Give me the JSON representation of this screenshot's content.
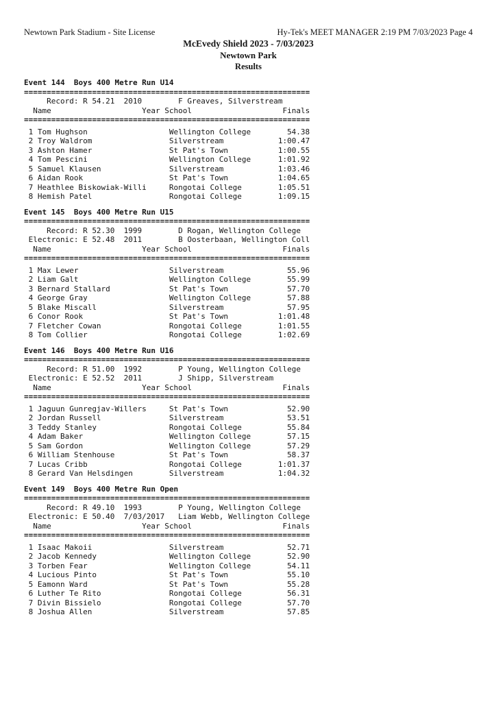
{
  "page_header": {
    "left": "Newtown Park Stadium - Site License",
    "right": "Hy-Tek's MEET MANAGER  2:19 PM  7/03/2023  Page 4",
    "title": "McEvedy Shield 2023 - 7/03/2023",
    "venue": "Newtown Park",
    "results_label": "Results"
  },
  "separator": "===============================================================",
  "column_headers": {
    "name": "Name",
    "year": "Year",
    "school": "School",
    "finals": "Finals"
  },
  "events": [
    {
      "title": "Event 144  Boys 400 Metre Run U14",
      "records": [
        {
          "label": "Record:",
          "flag": "R",
          "mark": "54.21",
          "date": "2010",
          "holder": "F Greaves, Silverstream"
        }
      ],
      "results": [
        {
          "place": "1",
          "name": "Tom Hughson",
          "school": "Wellington College",
          "finals": "54.38"
        },
        {
          "place": "2",
          "name": "Troy Waldrom",
          "school": "Silverstream",
          "finals": "1:00.47"
        },
        {
          "place": "3",
          "name": "Ashton Hamer",
          "school": "St Pat's Town",
          "finals": "1:00.55"
        },
        {
          "place": "4",
          "name": "Tom Pescini",
          "school": "Wellington College",
          "finals": "1:01.92"
        },
        {
          "place": "5",
          "name": "Samuel Klausen",
          "school": "Silverstream",
          "finals": "1:03.46"
        },
        {
          "place": "6",
          "name": "Aidan Rook",
          "school": "St Pat's Town",
          "finals": "1:04.65"
        },
        {
          "place": "7",
          "name": "Heathlee Biskowiak-Willi",
          "school": "Rongotai College",
          "finals": "1:05.51"
        },
        {
          "place": "8",
          "name": "Hemish Patel",
          "school": "Rongotai College",
          "finals": "1:09.15"
        }
      ]
    },
    {
      "title": "Event 145  Boys 400 Metre Run U15",
      "records": [
        {
          "label": "Record:",
          "flag": "R",
          "mark": "52.30",
          "date": "1999",
          "holder": "D Rogan, Wellington College"
        },
        {
          "label": "Electronic:",
          "flag": "E",
          "mark": "52.48",
          "date": "2011",
          "holder": "B Oosterbaan, Wellington Coll"
        }
      ],
      "results": [
        {
          "place": "1",
          "name": "Max Lewer",
          "school": "Silverstream",
          "finals": "55.96"
        },
        {
          "place": "2",
          "name": "Liam Galt",
          "school": "Wellington College",
          "finals": "55.99"
        },
        {
          "place": "3",
          "name": "Bernard Stallard",
          "school": "St Pat's Town",
          "finals": "57.70"
        },
        {
          "place": "4",
          "name": "George Gray",
          "school": "Wellington College",
          "finals": "57.88"
        },
        {
          "place": "5",
          "name": "Blake Miscall",
          "school": "Silverstream",
          "finals": "57.95"
        },
        {
          "place": "6",
          "name": "Conor Rook",
          "school": "St Pat's Town",
          "finals": "1:01.48"
        },
        {
          "place": "7",
          "name": "Fletcher Cowan",
          "school": "Rongotai College",
          "finals": "1:01.55"
        },
        {
          "place": "8",
          "name": "Tom Collier",
          "school": "Rongotai College",
          "finals": "1:02.69"
        }
      ]
    },
    {
      "title": "Event 146  Boys 400 Metre Run U16",
      "records": [
        {
          "label": "Record:",
          "flag": "R",
          "mark": "51.00",
          "date": "1992",
          "holder": "P Young, Wellington College"
        },
        {
          "label": "Electronic:",
          "flag": "E",
          "mark": "52.52",
          "date": "2011",
          "holder": "J Shipp, Silverstream"
        }
      ],
      "results": [
        {
          "place": "1",
          "name": "Jaguun Gunregjav-Willers",
          "school": "St Pat's Town",
          "finals": "52.90"
        },
        {
          "place": "2",
          "name": "Jordan Russell",
          "school": "Silverstream",
          "finals": "53.51"
        },
        {
          "place": "3",
          "name": "Teddy Stanley",
          "school": "Rongotai College",
          "finals": "55.84"
        },
        {
          "place": "4",
          "name": "Adam Baker",
          "school": "Wellington College",
          "finals": "57.15"
        },
        {
          "place": "5",
          "name": "Sam Gordon",
          "school": "Wellington College",
          "finals": "57.29"
        },
        {
          "place": "6",
          "name": "William Stenhouse",
          "school": "St Pat's Town",
          "finals": "58.37"
        },
        {
          "place": "7",
          "name": "Lucas Cribb",
          "school": "Rongotai College",
          "finals": "1:01.37"
        },
        {
          "place": "8",
          "name": "Gerard Van Helsdingen",
          "school": "Silverstream",
          "finals": "1:04.32"
        }
      ]
    },
    {
      "title": "Event 149  Boys 400 Metre Run Open",
      "records": [
        {
          "label": "Record:",
          "flag": "R",
          "mark": "49.10",
          "date": "1993",
          "holder": "P Young, Wellington College"
        },
        {
          "label": "Electronic:",
          "flag": "E",
          "mark": "50.40",
          "date": "7/03/2017",
          "holder": "Liam Webb, Wellington College"
        }
      ],
      "results": [
        {
          "place": "1",
          "name": "Isaac Makoii",
          "school": "Silverstream",
          "finals": "52.71"
        },
        {
          "place": "2",
          "name": "Jacob Kennedy",
          "school": "Wellington College",
          "finals": "52.90"
        },
        {
          "place": "3",
          "name": "Torben Fear",
          "school": "Wellington College",
          "finals": "54.11"
        },
        {
          "place": "4",
          "name": "Lucious Pinto",
          "school": "St Pat's Town",
          "finals": "55.10"
        },
        {
          "place": "5",
          "name": "Eamonn Ward",
          "school": "St Pat's Town",
          "finals": "55.28"
        },
        {
          "place": "6",
          "name": "Luther Te Rito",
          "school": "Rongotai College",
          "finals": "56.31"
        },
        {
          "place": "7",
          "name": "Divin Bissielo",
          "school": "Rongotai College",
          "finals": "57.70"
        },
        {
          "place": "8",
          "name": "Joshua Allen",
          "school": "Silverstream",
          "finals": "57.85"
        }
      ]
    }
  ]
}
